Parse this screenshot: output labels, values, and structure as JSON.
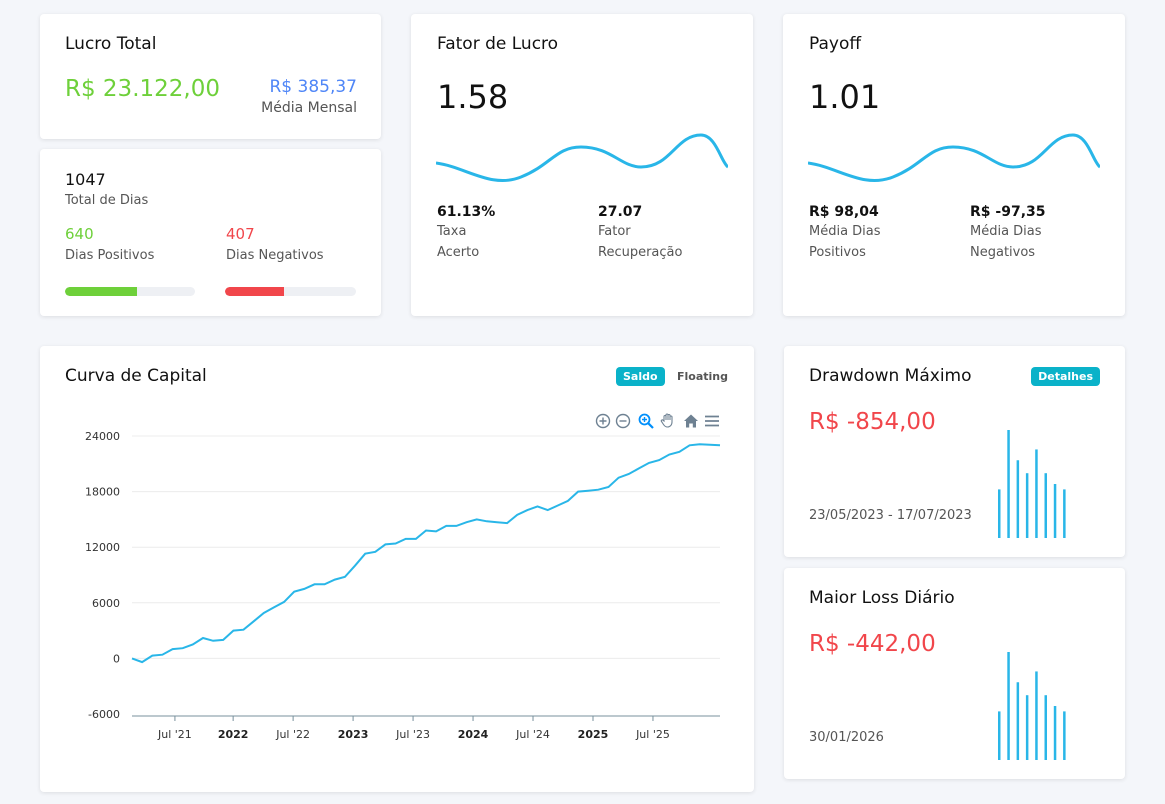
{
  "lucro_total": {
    "title": "Lucro Total",
    "value": "R$ 23.122,00",
    "monthly_value": "R$ 385,37",
    "monthly_label": "Média Mensal"
  },
  "dias": {
    "total": "1047",
    "total_label": "Total de Dias",
    "positive": "640",
    "positive_label": "Dias Positivos",
    "negative": "407",
    "negative_label": "Dias Negativos",
    "positive_fraction": 0.55,
    "negative_fraction": 0.45
  },
  "fator_lucro": {
    "title": "Fator de Lucro",
    "value": "1.58",
    "stat1_value": "61.13%",
    "stat1_label_1": "Taxa",
    "stat1_label_2": "Acerto",
    "stat2_value": "27.07",
    "stat2_label_1": "Fator",
    "stat2_label_2": "Recuperação"
  },
  "payoff": {
    "title": "Payoff",
    "value": "1.01",
    "stat1_value": "R$ 98,04",
    "stat1_label_1": "Média Dias",
    "stat1_label_2": "Positivos",
    "stat2_value": "R$ -97,35",
    "stat2_label_1": "Média Dias",
    "stat2_label_2": "Negativos"
  },
  "curva": {
    "title": "Curva de Capital",
    "tab_active": "Saldo",
    "tab_inactive": "Floating",
    "toolbar": [
      "zoom-in-icon",
      "zoom-out-icon",
      "zoom-select-icon",
      "pan-icon",
      "home-icon",
      "menu-icon"
    ]
  },
  "drawdown": {
    "title": "Drawdown Máximo",
    "details_label": "Detalhes",
    "value": "R$ -854,00",
    "period": "23/05/2023 - 17/07/2023",
    "bars": [
      0.45,
      1.0,
      0.72,
      0.6,
      0.82,
      0.6,
      0.5,
      0.45
    ]
  },
  "maior_loss": {
    "title": "Maior Loss Diário",
    "value": "R$ -442,00",
    "date": "30/01/2026",
    "bars": [
      0.45,
      1.0,
      0.72,
      0.6,
      0.82,
      0.6,
      0.5,
      0.45
    ]
  },
  "colors": {
    "accent": "#29b6e8",
    "positive": "#6ed03a",
    "negative": "#f1464b",
    "blue": "#4f86f7",
    "pill": "#0ab2c9"
  },
  "chart_data": {
    "type": "line",
    "title": "",
    "xlabel": "",
    "ylabel": "",
    "ylim": [
      -6000,
      24000
    ],
    "yticks": [
      "24000",
      "18000",
      "12000",
      "6000",
      "0",
      "-6000"
    ],
    "ytick_values": [
      24000,
      18000,
      12000,
      6000,
      0,
      -6000
    ],
    "xticks": [
      {
        "label": "Jul '21",
        "bold": false,
        "t": 0.073
      },
      {
        "label": "2022",
        "bold": true,
        "t": 0.172
      },
      {
        "label": "Jul '22",
        "bold": false,
        "t": 0.274
      },
      {
        "label": "2023",
        "bold": true,
        "t": 0.376
      },
      {
        "label": "Jul '23",
        "bold": false,
        "t": 0.478
      },
      {
        "label": "2024",
        "bold": true,
        "t": 0.58
      },
      {
        "label": "Jul '24",
        "bold": false,
        "t": 0.682
      },
      {
        "label": "2025",
        "bold": true,
        "t": 0.784
      },
      {
        "label": "Jul '25",
        "bold": false,
        "t": 0.886
      }
    ],
    "series": [
      {
        "values": [
          0,
          -400,
          300,
          400,
          1000,
          1100,
          1500,
          2200,
          1900,
          2000,
          3000,
          3100,
          4000,
          4900,
          5500,
          6100,
          7200,
          7500,
          8000,
          8000,
          8500,
          8800,
          10000,
          11300,
          11500,
          12300,
          12400,
          12900,
          12900,
          13800,
          13700,
          14300,
          14300,
          14700,
          15000,
          14800,
          14700,
          14600,
          15500,
          16000,
          16400,
          16000,
          16500,
          17000,
          18000,
          18100,
          18200,
          18500,
          19500,
          19900,
          20500,
          21100,
          21400,
          22000,
          22300,
          23000,
          23100,
          23050,
          23000
        ]
      }
    ]
  }
}
